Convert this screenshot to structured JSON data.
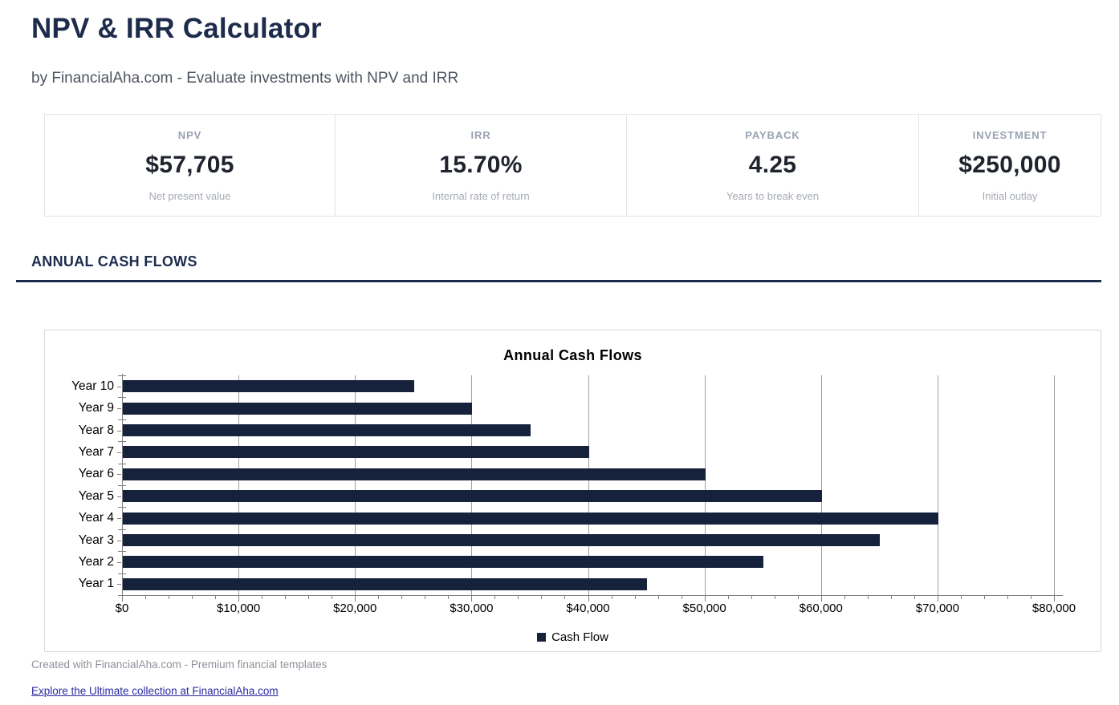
{
  "header": {
    "title": "NPV & IRR Calculator",
    "subtitle": "by FinancialAha.com - Evaluate investments with NPV and IRR"
  },
  "metrics": [
    {
      "label": "NPV",
      "value": "$57,705",
      "sub": "Net present value"
    },
    {
      "label": "IRR",
      "value": "15.70%",
      "sub": "Internal rate of return"
    },
    {
      "label": "PAYBACK",
      "value": "4.25",
      "sub": "Years to break even"
    },
    {
      "label": "INVESTMENT",
      "value": "$250,000",
      "sub": "Initial outlay"
    }
  ],
  "section": {
    "title": "ANNUAL CASH FLOWS"
  },
  "chart_data": {
    "type": "bar",
    "orientation": "horizontal",
    "title": "Annual Cash Flows",
    "categories": [
      "Year 1",
      "Year 2",
      "Year 3",
      "Year 4",
      "Year 5",
      "Year 6",
      "Year 7",
      "Year 8",
      "Year 9",
      "Year 10"
    ],
    "values": [
      45000,
      55000,
      65000,
      70000,
      60000,
      50000,
      40000,
      35000,
      30000,
      25000
    ],
    "series_name": "Cash Flow",
    "xlabel": "",
    "ylabel": "",
    "xlim": [
      0,
      80000
    ],
    "x_major_step": 10000,
    "x_minor_step": 2000,
    "x_tick_labels": [
      "$0",
      "$10,000",
      "$20,000",
      "$30,000",
      "$40,000",
      "$50,000",
      "$60,000",
      "$70,000",
      "$80,000"
    ],
    "category_order_top_to_bottom": "Year 10 first",
    "grid": true,
    "legend_position": "bottom",
    "bar_color": "#16213C"
  },
  "footer": {
    "note": "Created with FinancialAha.com - Premium financial templates",
    "link_text": "Explore the Ultimate collection at FinancialAha.com"
  },
  "colors": {
    "accent_navy": "#1d2b4c",
    "bar_navy": "#16213C",
    "link_blue": "#2a2aa2"
  }
}
